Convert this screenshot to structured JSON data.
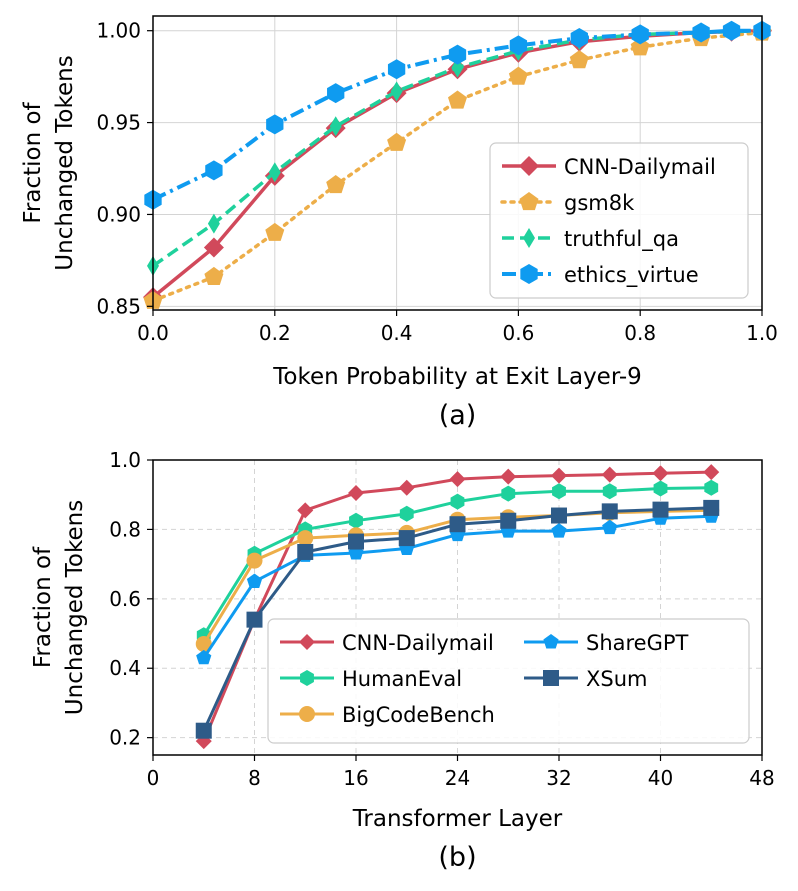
{
  "chart_data": [
    {
      "type": "line",
      "caption": "(a)",
      "xlabel": "Token Probability at Exit Layer-9",
      "ylabel_lines": [
        "Fraction of",
        "Unchanged Tokens"
      ],
      "xlim": [
        0,
        1
      ],
      "ylim": [
        0.848,
        1.008
      ],
      "xticks": [
        0.0,
        0.2,
        0.4,
        0.6,
        0.8,
        1.0
      ],
      "xtick_labels": [
        "0.0",
        "0.2",
        "0.4",
        "0.6",
        "0.8",
        "1.0"
      ],
      "yticks": [
        0.85,
        0.9,
        0.95,
        1.0
      ],
      "ytick_labels": [
        "0.85",
        "0.90",
        "0.95",
        "1.00"
      ],
      "grid": true,
      "legend_position": "center-right",
      "series": [
        {
          "name": "CNN-Dailymail",
          "color": "#d1495b",
          "marker": "diamond",
          "dash": "solid",
          "width": 3.5,
          "x": [
            0.0,
            0.1,
            0.2,
            0.3,
            0.4,
            0.5,
            0.6,
            0.7,
            0.8,
            0.9,
            0.95,
            1.0
          ],
          "y": [
            0.855,
            0.882,
            0.921,
            0.947,
            0.966,
            0.979,
            0.988,
            0.994,
            0.997,
            0.999,
            0.9995,
            1.0
          ]
        },
        {
          "name": "gsm8k",
          "color": "#edae49",
          "marker": "pentagon",
          "dash": "dotted",
          "width": 3.5,
          "x": [
            0.0,
            0.1,
            0.2,
            0.3,
            0.4,
            0.5,
            0.6,
            0.7,
            0.8,
            0.9,
            1.0
          ],
          "y": [
            0.853,
            0.866,
            0.89,
            0.916,
            0.939,
            0.962,
            0.975,
            0.984,
            0.991,
            0.996,
            0.999
          ]
        },
        {
          "name": "truthful_qa",
          "color": "#1fd19c",
          "marker": "thin-diamond",
          "dash": "dashed",
          "width": 3.5,
          "x": [
            0.0,
            0.1,
            0.2,
            0.3,
            0.4,
            0.5,
            0.6,
            0.7,
            0.8,
            0.9,
            1.0
          ],
          "y": [
            0.872,
            0.895,
            0.923,
            0.948,
            0.967,
            0.98,
            0.989,
            0.995,
            0.998,
            0.999,
            1.0
          ]
        },
        {
          "name": "ethics_virtue",
          "color": "#0f9bf0",
          "marker": "hexagon",
          "dash": "dashdot",
          "width": 4,
          "x": [
            0.0,
            0.1,
            0.2,
            0.3,
            0.4,
            0.5,
            0.6,
            0.7,
            0.8,
            0.9,
            0.95,
            1.0
          ],
          "y": [
            0.908,
            0.924,
            0.949,
            0.966,
            0.979,
            0.987,
            0.992,
            0.996,
            0.998,
            0.999,
            1.0,
            1.0
          ]
        }
      ]
    },
    {
      "type": "line",
      "caption": "(b)",
      "xlabel": "Transformer Layer",
      "ylabel_lines": [
        "Fraction of",
        "Unchanged Tokens"
      ],
      "xlim": [
        0,
        48
      ],
      "ylim": [
        0.15,
        1.0
      ],
      "xticks": [
        0,
        8,
        16,
        24,
        32,
        40,
        48
      ],
      "xtick_labels": [
        "0",
        "8",
        "16",
        "24",
        "32",
        "40",
        "48"
      ],
      "yticks": [
        0.2,
        0.4,
        0.6,
        0.8,
        1.0
      ],
      "ytick_labels": [
        "0.2",
        "0.4",
        "0.6",
        "0.8",
        "1.0"
      ],
      "grid": true,
      "legend_position": "lower-right",
      "series": [
        {
          "name": "CNN-Dailymail",
          "color": "#d1495b",
          "marker": "diamond",
          "dash": "solid",
          "width": 3,
          "x": [
            4,
            8,
            12,
            16,
            20,
            24,
            28,
            32,
            36,
            40,
            44
          ],
          "y": [
            0.19,
            0.54,
            0.855,
            0.905,
            0.92,
            0.945,
            0.952,
            0.955,
            0.958,
            0.962,
            0.965
          ]
        },
        {
          "name": "HumanEval",
          "color": "#1fd19c",
          "marker": "hexagon",
          "dash": "solid",
          "width": 3,
          "x": [
            4,
            8,
            12,
            16,
            20,
            24,
            28,
            32,
            36,
            40,
            44
          ],
          "y": [
            0.495,
            0.73,
            0.8,
            0.825,
            0.845,
            0.88,
            0.903,
            0.91,
            0.91,
            0.918,
            0.92
          ]
        },
        {
          "name": "BigCodeBench",
          "color": "#edae49",
          "marker": "circle",
          "dash": "solid",
          "width": 3,
          "x": [
            4,
            8,
            12,
            16,
            20,
            24,
            28,
            32,
            36,
            40,
            44
          ],
          "y": [
            0.47,
            0.71,
            0.775,
            0.783,
            0.79,
            0.828,
            0.835,
            0.84,
            0.848,
            0.852,
            0.855
          ]
        },
        {
          "name": "ShareGPT",
          "color": "#0f9bf0",
          "marker": "pentagon",
          "dash": "solid",
          "width": 3,
          "x": [
            4,
            8,
            12,
            16,
            20,
            24,
            28,
            32,
            36,
            40,
            44
          ],
          "y": [
            0.43,
            0.65,
            0.725,
            0.732,
            0.745,
            0.785,
            0.795,
            0.795,
            0.805,
            0.832,
            0.838
          ]
        },
        {
          "name": "XSum",
          "color": "#2e5b88",
          "marker": "square",
          "dash": "solid",
          "width": 3,
          "x": [
            4,
            8,
            12,
            16,
            20,
            24,
            28,
            32,
            36,
            40,
            44
          ],
          "y": [
            0.22,
            0.54,
            0.735,
            0.765,
            0.775,
            0.815,
            0.825,
            0.84,
            0.852,
            0.857,
            0.862
          ]
        }
      ]
    }
  ]
}
